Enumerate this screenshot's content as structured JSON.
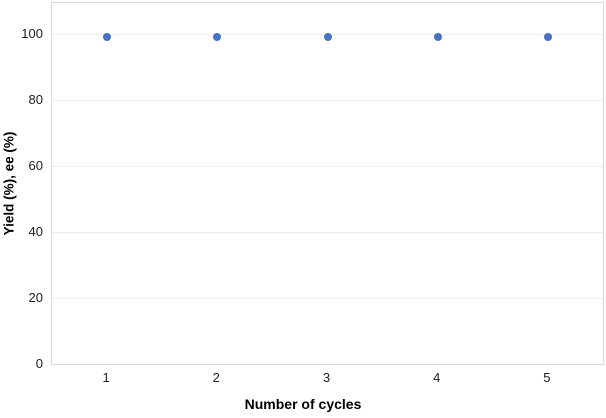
{
  "chart_data": {
    "type": "scatter",
    "title": "",
    "xlabel": "Number of cycles",
    "ylabel": "Yield (%), ee (%)",
    "x": [
      1,
      2,
      3,
      4,
      5
    ],
    "series": [
      {
        "name": "Yield (%), ee (%)",
        "values": [
          99,
          99,
          99,
          99,
          99
        ]
      }
    ],
    "xtick_labels": [
      "1",
      "2",
      "3",
      "4",
      "5"
    ],
    "ytick_values": [
      0,
      20,
      40,
      60,
      80,
      100
    ],
    "ylim": [
      0,
      109
    ],
    "grid": true,
    "legend_position": "none",
    "marker_color": "#4472C4",
    "gridline_color": "#ededed",
    "plot_border_color": "#d9d9d9",
    "tick_text_color": "#1d1d1d",
    "axis_title_color": "#000000"
  }
}
